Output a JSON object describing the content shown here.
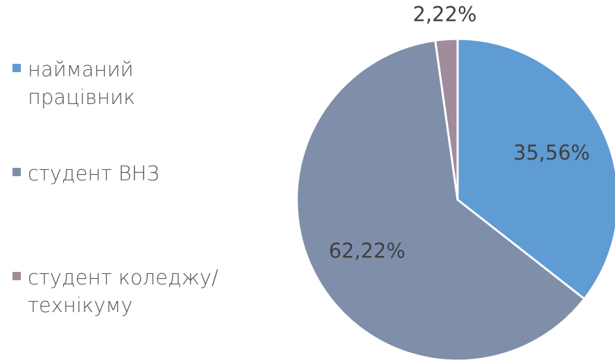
{
  "chart_data": {
    "type": "pie",
    "categories": [
      "найманий працівник",
      "студент ВНЗ",
      "студент коледжу/технікуму"
    ],
    "values": [
      35.56,
      62.22,
      2.22
    ],
    "value_labels": [
      "35,56%",
      "62,22%",
      "2,22%"
    ],
    "colors": [
      "#5f9cd4",
      "#7f8faa",
      "#a08c9d"
    ],
    "legend": "left"
  }
}
